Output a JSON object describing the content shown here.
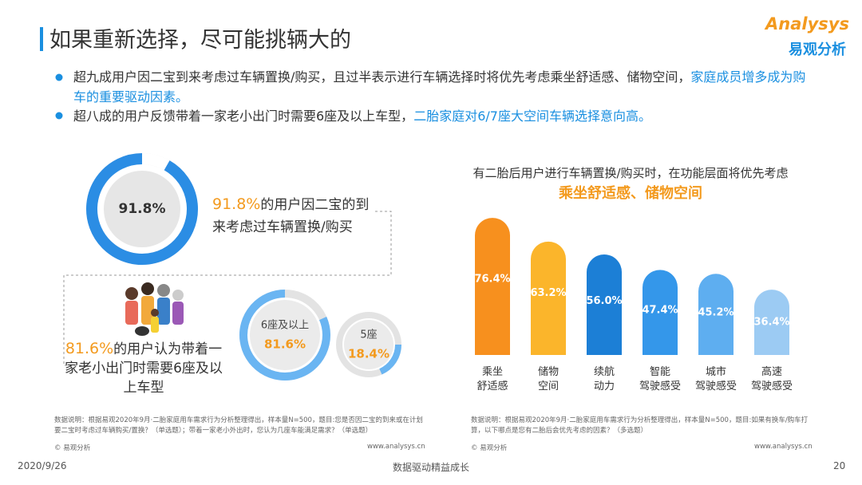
{
  "header": {
    "title": "如果重新选择，尽可能挑辆大的",
    "logo_en": "Analysys",
    "logo_cn": "易观分析"
  },
  "bullets": [
    {
      "text": "超九成用户因二宝到来考虑过车辆置换/购买，且过半表示进行车辆选择时将优先考虑乘坐舒适感、储物空间，",
      "highlight": "家庭成员增多成为购车的重要驱动因素。"
    },
    {
      "text": "超八成的用户反馈带着一家老小出门时需要6座及以上车型，",
      "highlight": "二胎家庭对6/7座大空间车辆选择意向高。"
    }
  ],
  "chart_data": [
    {
      "type": "donut",
      "values": [
        91.8,
        8.2
      ],
      "value_labels": [
        "91.8%",
        null
      ],
      "colors": [
        "#2b8de4",
        "#ffffff"
      ],
      "caption": "的用户因二宝的到来考虑过车辆置换/购买"
    },
    {
      "type": "rings",
      "categories": [
        "6座及以上",
        "5座"
      ],
      "values": [
        81.6,
        18.4
      ],
      "value_labels": [
        "81.6%",
        "18.4%"
      ],
      "colors": [
        "#6ab5f2",
        "#6ab5f2"
      ],
      "caption": "的用户认为带着一家老小出门时需要6座及以上车型"
    },
    {
      "type": "bar",
      "title": "有二胎后用户进行车辆置换/购买时，在功能层面将优先考虑",
      "title_highlight": "乘坐舒适感、储物空间",
      "categories": [
        "乘坐舒适感",
        "储物空间",
        "续航动力",
        "智能驾驶感受",
        "城市驾驶感受",
        "高速驾驶感受"
      ],
      "values": [
        76.4,
        63.2,
        56.0,
        47.4,
        45.2,
        36.4
      ],
      "value_labels": [
        "76.4%",
        "63.2%",
        "56.0%",
        "47.4%",
        "45.2%",
        "36.4%"
      ],
      "colors": [
        "#f7901e",
        "#fbb52b",
        "#1c7fd6",
        "#3497ea",
        "#5eaef0",
        "#9ccbf3"
      ],
      "ylim": [
        0,
        100
      ]
    }
  ],
  "notes": {
    "left": "数据说明：根据易观2020年9月·二胎家庭用车需求行为分析整理得出，样本量N=500，题目:您是否因二宝的到来或在计划要二宝时考虑过车辆购买/置换？（单选题）；带着一家老小外出时，您认为几座车能满足需求？（单选题）",
    "right": "数据说明：根据易观2020年9月·二胎家庭用车需求行为分析整理得出，样本量N=500，题目:如果有换车/购车打算，以下哪点是您有二胎后会优先考虑的因素？（多选题）",
    "source_left": "© 易观分析",
    "url_left": "www.analysys.cn",
    "source_right": "© 易观分析",
    "url_right": "www.analysys.cn"
  },
  "footer": {
    "date": "2020/9/26",
    "slogan": "数据驱动精益成长",
    "page": "20"
  }
}
